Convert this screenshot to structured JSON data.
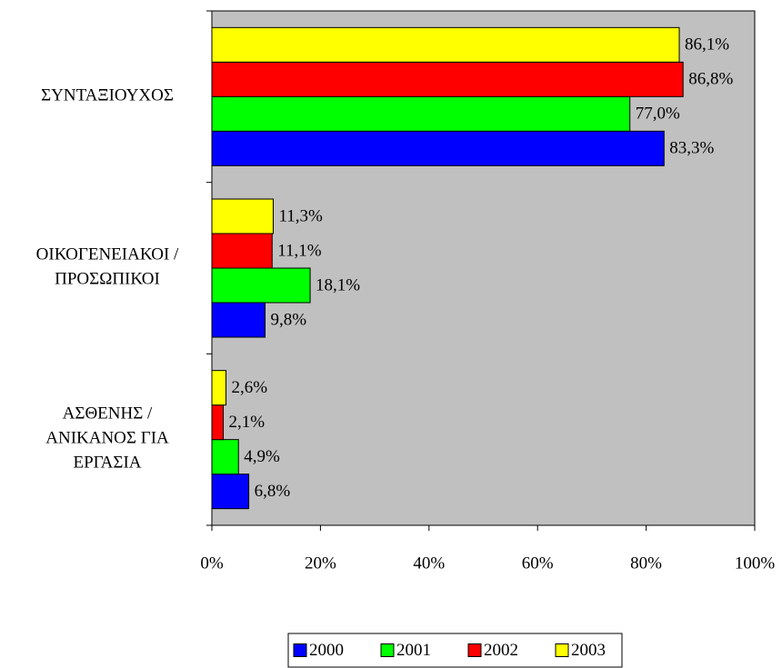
{
  "chart_data": {
    "type": "bar",
    "orientation": "horizontal",
    "categories": [
      "ΣΥΝΤΑΞΙΟΥΧΟΣ",
      "ΟΙΚΟΓΕΝΕΙΑΚΟΙ /\nΠΡΟΣΩΠΙΚΟΙ",
      "ΑΣΘΕΝΗΣ /\nΑΝΙΚΑΝΟΣ ΓΙΑ\nΕΡΓΑΣΙΑ"
    ],
    "series": [
      {
        "name": "2000",
        "color": "#0000ff",
        "values": [
          83.3,
          9.8,
          6.8
        ],
        "value_labels": [
          "83,3%",
          "9,8%",
          "6,8%"
        ]
      },
      {
        "name": "2001",
        "color": "#00ff00",
        "values": [
          77.0,
          18.1,
          4.9
        ],
        "value_labels": [
          "77,0%",
          "18,1%",
          "4,9%"
        ]
      },
      {
        "name": "2002",
        "color": "#ff0000",
        "values": [
          86.8,
          11.1,
          2.1
        ],
        "value_labels": [
          "86,8%",
          "11,1%",
          "2,1%"
        ]
      },
      {
        "name": "2003",
        "color": "#ffff00",
        "values": [
          86.1,
          11.3,
          2.6
        ],
        "value_labels": [
          "86,1%",
          "11,3%",
          "2,6%"
        ]
      }
    ],
    "xlim": [
      0,
      100
    ],
    "xticks": [
      {
        "value": 0,
        "label": "0%"
      },
      {
        "value": 20,
        "label": "20%"
      },
      {
        "value": 40,
        "label": "40%"
      },
      {
        "value": 60,
        "label": "60%"
      },
      {
        "value": 80,
        "label": "80%"
      },
      {
        "value": 100,
        "label": "100%"
      }
    ],
    "grid": false,
    "legend": "bottom",
    "plot_background": "#c0c0c0"
  }
}
